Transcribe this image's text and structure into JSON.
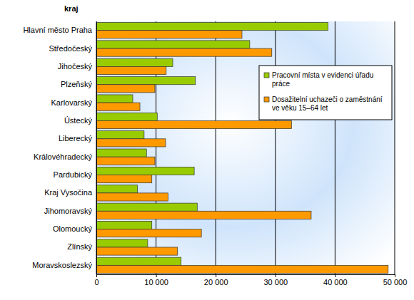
{
  "chart_data": {
    "type": "bar",
    "orientation": "horizontal",
    "y_label": "kraj",
    "categories": [
      "Hlavní město Praha",
      "Středočeský",
      "Jihočeský",
      "Plzeňský",
      "Karlovarský",
      "Ústecký",
      "Liberecký",
      "Královéhradecký",
      "Pardubický",
      "Kraj Vysočina",
      "Jihomoravský",
      "Olomoucký",
      "Zlínský",
      "Moravskoslezský"
    ],
    "series": [
      {
        "name": "Pracovní místa v evidenci úřadu práce",
        "color": "#99cc00",
        "values": [
          38800,
          25700,
          12800,
          16600,
          6100,
          10200,
          8000,
          8400,
          16400,
          6900,
          16900,
          9300,
          8600,
          14200
        ]
      },
      {
        "name": "Dosažitelní uchazeči o zaměstnání ve věku 15–64 let",
        "color": "#ff9900",
        "values": [
          24400,
          29400,
          11700,
          9800,
          7300,
          32700,
          11600,
          9800,
          9300,
          12000,
          36000,
          17600,
          13600,
          48900
        ]
      }
    ],
    "xlim": [
      0,
      50000
    ],
    "xticks": [
      0,
      {
        "value": 10000,
        "label": "10 000"
      },
      {
        "value": 20000,
        "label": "20 000"
      },
      {
        "value": 30000,
        "label": "30 000"
      },
      {
        "value": 40000,
        "label": "40 000"
      },
      {
        "value": 50000,
        "label": "50 000"
      }
    ],
    "grid": true,
    "legend": "top-right"
  }
}
